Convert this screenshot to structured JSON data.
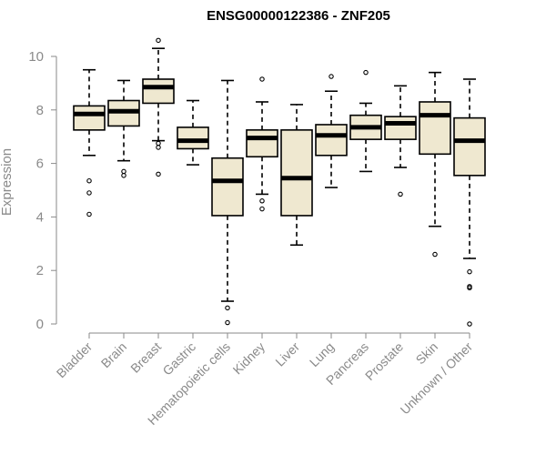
{
  "chart_data": {
    "type": "boxplot",
    "title": "ENSG00000122386 - ZNF205",
    "xlabel": "",
    "ylabel": "Expression",
    "ylim": [
      0,
      10
    ],
    "yticks": [
      0,
      2,
      4,
      6,
      8,
      10
    ],
    "grid": false,
    "legend": "none",
    "box_fill": "#efe8d0",
    "categories": [
      "Bladder",
      "Brain",
      "Breast",
      "Gastric",
      "Hematopoietic cells",
      "Kidney",
      "Liver",
      "Lung",
      "Pancreas",
      "Prostate",
      "Skin",
      "Unknown / Other"
    ],
    "boxes": [
      {
        "whisker_low": 6.3,
        "q1": 7.25,
        "median": 7.85,
        "q3": 8.15,
        "whisker_high": 9.5,
        "outliers": [
          5.35,
          4.9,
          4.1
        ]
      },
      {
        "whisker_low": 6.1,
        "q1": 7.4,
        "median": 7.95,
        "q3": 8.35,
        "whisker_high": 9.1,
        "outliers": [
          5.7,
          5.55
        ]
      },
      {
        "whisker_low": 6.85,
        "q1": 8.25,
        "median": 8.85,
        "q3": 9.15,
        "whisker_high": 10.3,
        "outliers": [
          10.6,
          6.75,
          6.6,
          5.6
        ]
      },
      {
        "whisker_low": 5.95,
        "q1": 6.55,
        "median": 6.85,
        "q3": 7.35,
        "whisker_high": 8.35,
        "outliers": []
      },
      {
        "whisker_low": 0.85,
        "q1": 4.05,
        "median": 5.35,
        "q3": 6.2,
        "whisker_high": 9.1,
        "outliers": [
          0.6,
          0.05
        ]
      },
      {
        "whisker_low": 4.85,
        "q1": 6.25,
        "median": 6.95,
        "q3": 7.25,
        "whisker_high": 8.3,
        "outliers": [
          9.15,
          4.6,
          4.3
        ]
      },
      {
        "whisker_low": 2.95,
        "q1": 4.05,
        "median": 5.45,
        "q3": 7.25,
        "whisker_high": 8.2,
        "outliers": []
      },
      {
        "whisker_low": 5.1,
        "q1": 6.3,
        "median": 7.05,
        "q3": 7.45,
        "whisker_high": 8.7,
        "outliers": [
          9.25
        ]
      },
      {
        "whisker_low": 5.7,
        "q1": 6.9,
        "median": 7.35,
        "q3": 7.8,
        "whisker_high": 8.25,
        "outliers": [
          9.4
        ]
      },
      {
        "whisker_low": 5.85,
        "q1": 6.9,
        "median": 7.5,
        "q3": 7.75,
        "whisker_high": 8.9,
        "outliers": [
          4.85
        ]
      },
      {
        "whisker_low": 3.65,
        "q1": 6.35,
        "median": 7.8,
        "q3": 8.3,
        "whisker_high": 9.4,
        "outliers": [
          2.6
        ]
      },
      {
        "whisker_low": 2.45,
        "q1": 5.55,
        "median": 6.85,
        "q3": 7.7,
        "whisker_high": 9.15,
        "outliers": [
          1.95,
          1.4,
          1.35,
          0.0
        ]
      }
    ]
  }
}
